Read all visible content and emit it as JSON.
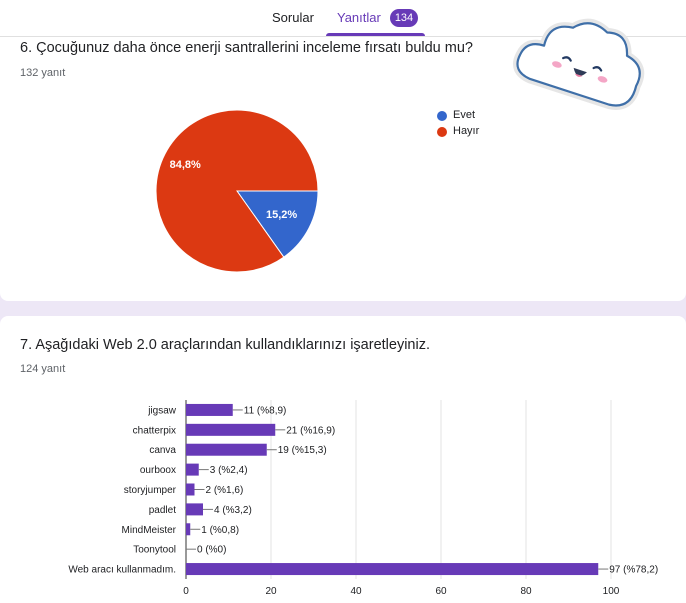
{
  "tabs": {
    "questions_label": "Sorular",
    "responses_label": "Yanıtlar",
    "responses_count": "134"
  },
  "question6": {
    "title": "6. Çocuğunuz daha önce enerji santrallerini inceleme fırsatı buldu mu?",
    "response_count": "132 yanıt"
  },
  "question7": {
    "title": "7. Aşağıdaki Web 2.0 araçlarından kullandıklarınızı işaretleyiniz.",
    "response_count": "124 yanıt"
  },
  "decoration": {
    "icon": "smiling-cloud-sticker"
  },
  "chart_data": [
    {
      "type": "pie",
      "slices": [
        {
          "name": "Evet",
          "value": 15.2,
          "label": "15,2%",
          "color": "#3366cc"
        },
        {
          "name": "Hayır",
          "value": 84.8,
          "label": "84,8%",
          "color": "#dc3912"
        }
      ],
      "legend_position": "right"
    },
    {
      "type": "bar",
      "orientation": "horizontal",
      "categories": [
        "jigsaw",
        "chatterpix",
        "canva",
        "ourboox",
        "storyjumper",
        "padlet",
        "MindMeister",
        "Toonytool",
        "Web aracı kullanmadım."
      ],
      "values": [
        11,
        21,
        19,
        3,
        2,
        4,
        1,
        0,
        97
      ],
      "value_labels": [
        "11 (%8,9)",
        "21 (%16,9)",
        "19 (%15,3)",
        "3 (%2,4)",
        "2 (%1,6)",
        "4 (%3,2)",
        "1 (%0,8)",
        "0 (%0)",
        "97 (%78,2)"
      ],
      "xlim": [
        0,
        100
      ],
      "xticks": [
        0,
        20,
        40,
        60,
        80,
        100
      ],
      "grid": true,
      "color": "#673ab7"
    }
  ]
}
